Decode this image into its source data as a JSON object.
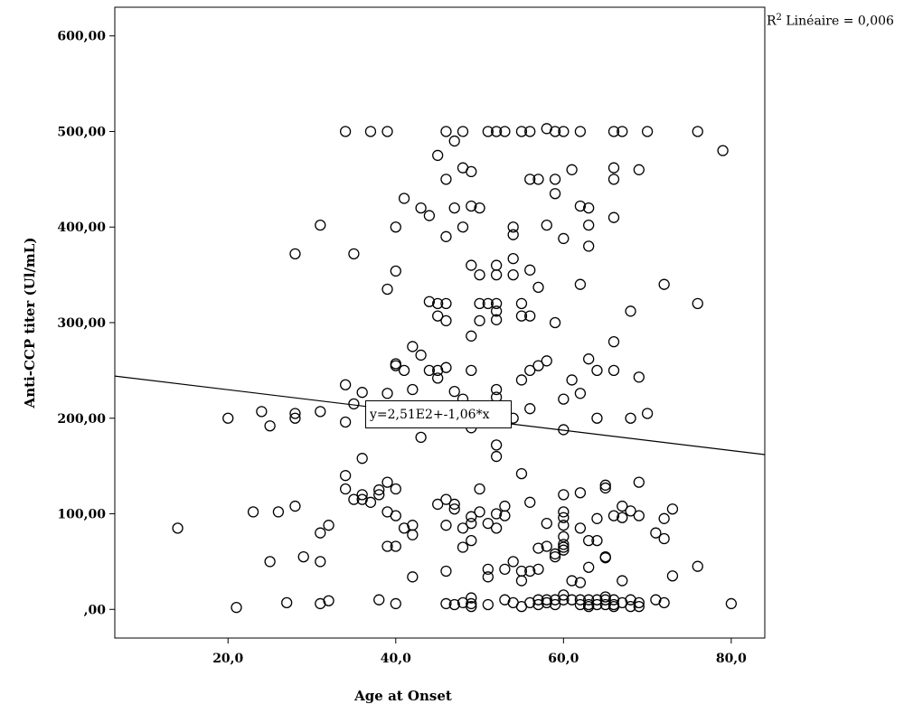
{
  "chart_data": {
    "type": "scatter",
    "xlabel": "Age at Onset",
    "ylabel": "Anti-CCP titer (Ul/mL)",
    "xlim": [
      6.5,
      84
    ],
    "ylim": [
      -30,
      630
    ],
    "xticks": [
      20,
      40,
      60,
      80
    ],
    "xtick_labels": [
      "20,0",
      "40,0",
      "60,0",
      "80,0"
    ],
    "yticks": [
      0,
      100,
      200,
      300,
      400,
      500,
      600
    ],
    "ytick_labels": [
      ",00",
      "100,00",
      "200,00",
      "300,00",
      "400,00",
      "500,00",
      "600,00"
    ],
    "grid": false,
    "fit_line": {
      "intercept": 251,
      "slope": -1.06
    },
    "equation": "y=2,51E2+-1,06*x",
    "r2_label": "R",
    "r2_sup": "2",
    "r2_text": "Linéaire = 0,006",
    "points": [
      [
        34,
        500
      ],
      [
        37,
        500
      ],
      [
        39,
        500
      ],
      [
        46,
        500
      ],
      [
        48,
        500
      ],
      [
        51,
        500
      ],
      [
        52,
        500
      ],
      [
        53,
        500
      ],
      [
        55,
        500
      ],
      [
        56,
        500
      ],
      [
        58,
        503
      ],
      [
        59,
        500
      ],
      [
        60,
        500
      ],
      [
        62,
        500
      ],
      [
        66,
        500
      ],
      [
        67,
        500
      ],
      [
        70,
        500
      ],
      [
        76,
        500
      ],
      [
        47,
        490
      ],
      [
        79,
        480
      ],
      [
        45,
        475
      ],
      [
        48,
        462
      ],
      [
        49,
        458
      ],
      [
        61,
        460
      ],
      [
        66,
        462
      ],
      [
        69,
        460
      ],
      [
        46,
        450
      ],
      [
        56,
        450
      ],
      [
        57,
        450
      ],
      [
        59,
        450
      ],
      [
        66,
        450
      ],
      [
        59,
        435
      ],
      [
        41,
        430
      ],
      [
        49,
        422
      ],
      [
        50,
        420
      ],
      [
        43,
        420
      ],
      [
        47,
        420
      ],
      [
        62,
        422
      ],
      [
        63,
        420
      ],
      [
        44,
        412
      ],
      [
        31,
        402
      ],
      [
        40,
        400
      ],
      [
        48,
        400
      ],
      [
        54,
        400
      ],
      [
        58,
        402
      ],
      [
        63,
        402
      ],
      [
        66,
        410
      ],
      [
        46,
        390
      ],
      [
        54,
        392
      ],
      [
        60,
        388
      ],
      [
        63,
        380
      ],
      [
        28,
        372
      ],
      [
        35,
        372
      ],
      [
        54,
        367
      ],
      [
        49,
        360
      ],
      [
        52,
        360
      ],
      [
        50,
        350
      ],
      [
        52,
        350
      ],
      [
        54,
        350
      ],
      [
        56,
        355
      ],
      [
        40,
        354
      ],
      [
        39,
        335
      ],
      [
        57,
        337
      ],
      [
        62,
        340
      ],
      [
        72,
        340
      ],
      [
        44,
        322
      ],
      [
        45,
        320
      ],
      [
        46,
        320
      ],
      [
        50,
        320
      ],
      [
        51,
        320
      ],
      [
        52,
        320
      ],
      [
        55,
        320
      ],
      [
        76,
        320
      ],
      [
        45,
        307
      ],
      [
        46,
        302
      ],
      [
        50,
        302
      ],
      [
        52,
        303
      ],
      [
        52,
        312
      ],
      [
        55,
        307
      ],
      [
        56,
        307
      ],
      [
        59,
        300
      ],
      [
        68,
        312
      ],
      [
        49,
        286
      ],
      [
        42,
        275
      ],
      [
        43,
        266
      ],
      [
        66,
        280
      ],
      [
        40,
        257
      ],
      [
        40,
        255
      ],
      [
        41,
        250
      ],
      [
        44,
        250
      ],
      [
        45,
        250
      ],
      [
        46,
        253
      ],
      [
        49,
        250
      ],
      [
        56,
        250
      ],
      [
        57,
        255
      ],
      [
        58,
        260
      ],
      [
        63,
        262
      ],
      [
        64,
        250
      ],
      [
        66,
        250
      ],
      [
        69,
        243
      ],
      [
        45,
        242
      ],
      [
        55,
        240
      ],
      [
        61,
        240
      ],
      [
        34,
        235
      ],
      [
        36,
        227
      ],
      [
        39,
        226
      ],
      [
        42,
        230
      ],
      [
        47,
        228
      ],
      [
        52,
        230
      ],
      [
        52,
        222
      ],
      [
        62,
        226
      ],
      [
        60,
        220
      ],
      [
        48,
        220
      ],
      [
        35,
        215
      ],
      [
        20,
        200
      ],
      [
        24,
        207
      ],
      [
        25,
        192
      ],
      [
        28,
        205
      ],
      [
        28,
        200
      ],
      [
        31,
        207
      ],
      [
        34,
        196
      ],
      [
        50,
        205
      ],
      [
        54,
        200
      ],
      [
        49,
        190
      ],
      [
        60,
        188
      ],
      [
        64,
        200
      ],
      [
        68,
        200
      ],
      [
        70,
        205
      ],
      [
        56,
        210
      ],
      [
        43,
        180
      ],
      [
        52,
        172
      ],
      [
        52,
        160
      ],
      [
        36,
        158
      ],
      [
        50,
        126
      ],
      [
        55,
        142
      ],
      [
        34,
        140
      ],
      [
        34,
        126
      ],
      [
        39,
        133
      ],
      [
        38,
        125
      ],
      [
        36,
        120
      ],
      [
        38,
        120
      ],
      [
        40,
        126
      ],
      [
        60,
        120
      ],
      [
        62,
        122
      ],
      [
        65,
        130
      ],
      [
        65,
        127
      ],
      [
        69,
        133
      ],
      [
        36,
        115
      ],
      [
        37,
        112
      ],
      [
        35,
        115
      ],
      [
        28,
        108
      ],
      [
        23,
        102
      ],
      [
        26,
        102
      ],
      [
        39,
        102
      ],
      [
        40,
        98
      ],
      [
        45,
        110
      ],
      [
        46,
        115
      ],
      [
        47,
        110
      ],
      [
        47,
        105
      ],
      [
        50,
        102
      ],
      [
        52,
        100
      ],
      [
        53,
        98
      ],
      [
        53,
        108
      ],
      [
        56,
        112
      ],
      [
        60,
        102
      ],
      [
        60,
        96
      ],
      [
        66,
        98
      ],
      [
        67,
        96
      ],
      [
        67,
        108
      ],
      [
        68,
        103
      ],
      [
        69,
        98
      ],
      [
        73,
        105
      ],
      [
        72,
        95
      ],
      [
        14,
        85
      ],
      [
        31,
        80
      ],
      [
        32,
        88
      ],
      [
        41,
        85
      ],
      [
        42,
        88
      ],
      [
        42,
        78
      ],
      [
        46,
        88
      ],
      [
        48,
        85
      ],
      [
        49,
        90
      ],
      [
        49,
        97
      ],
      [
        51,
        90
      ],
      [
        52,
        85
      ],
      [
        58,
        90
      ],
      [
        60,
        88
      ],
      [
        62,
        85
      ],
      [
        63,
        72
      ],
      [
        64,
        72
      ],
      [
        64,
        95
      ],
      [
        72,
        74
      ],
      [
        71,
        80
      ],
      [
        39,
        66
      ],
      [
        40,
        66
      ],
      [
        48,
        65
      ],
      [
        49,
        72
      ],
      [
        57,
        64
      ],
      [
        58,
        66
      ],
      [
        59,
        58
      ],
      [
        60,
        62
      ],
      [
        60,
        65
      ],
      [
        60,
        68
      ],
      [
        60,
        76
      ],
      [
        65,
        55
      ],
      [
        65,
        54
      ],
      [
        25,
        50
      ],
      [
        29,
        55
      ],
      [
        31,
        50
      ],
      [
        51,
        42
      ],
      [
        54,
        50
      ],
      [
        53,
        42
      ],
      [
        55,
        40
      ],
      [
        56,
        40
      ],
      [
        57,
        42
      ],
      [
        61,
        30
      ],
      [
        62,
        28
      ],
      [
        63,
        44
      ],
      [
        67,
        30
      ],
      [
        73,
        35
      ],
      [
        76,
        45
      ],
      [
        42,
        34
      ],
      [
        46,
        40
      ],
      [
        51,
        34
      ],
      [
        55,
        30
      ],
      [
        59,
        55
      ],
      [
        21,
        2
      ],
      [
        27,
        7
      ],
      [
        31,
        6
      ],
      [
        32,
        9
      ],
      [
        38,
        10
      ],
      [
        40,
        6
      ],
      [
        46,
        6
      ],
      [
        47,
        5
      ],
      [
        48,
        7
      ],
      [
        49,
        3
      ],
      [
        49,
        6
      ],
      [
        49,
        12
      ],
      [
        51,
        5
      ],
      [
        53,
        10
      ],
      [
        54,
        7
      ],
      [
        55,
        3
      ],
      [
        56,
        7
      ],
      [
        57,
        10
      ],
      [
        57,
        5
      ],
      [
        58,
        7
      ],
      [
        58,
        10
      ],
      [
        59,
        5
      ],
      [
        59,
        10
      ],
      [
        60,
        10
      ],
      [
        60,
        15
      ],
      [
        61,
        10
      ],
      [
        62,
        5
      ],
      [
        62,
        10
      ],
      [
        63,
        5
      ],
      [
        63,
        10
      ],
      [
        63,
        3
      ],
      [
        64,
        5
      ],
      [
        64,
        10
      ],
      [
        65,
        5
      ],
      [
        65,
        10
      ],
      [
        65,
        13
      ],
      [
        66,
        3
      ],
      [
        66,
        5
      ],
      [
        66,
        10
      ],
      [
        67,
        7
      ],
      [
        68,
        3
      ],
      [
        68,
        10
      ],
      [
        69,
        3
      ],
      [
        69,
        7
      ],
      [
        71,
        10
      ],
      [
        72,
        7
      ],
      [
        80,
        6
      ]
    ]
  }
}
